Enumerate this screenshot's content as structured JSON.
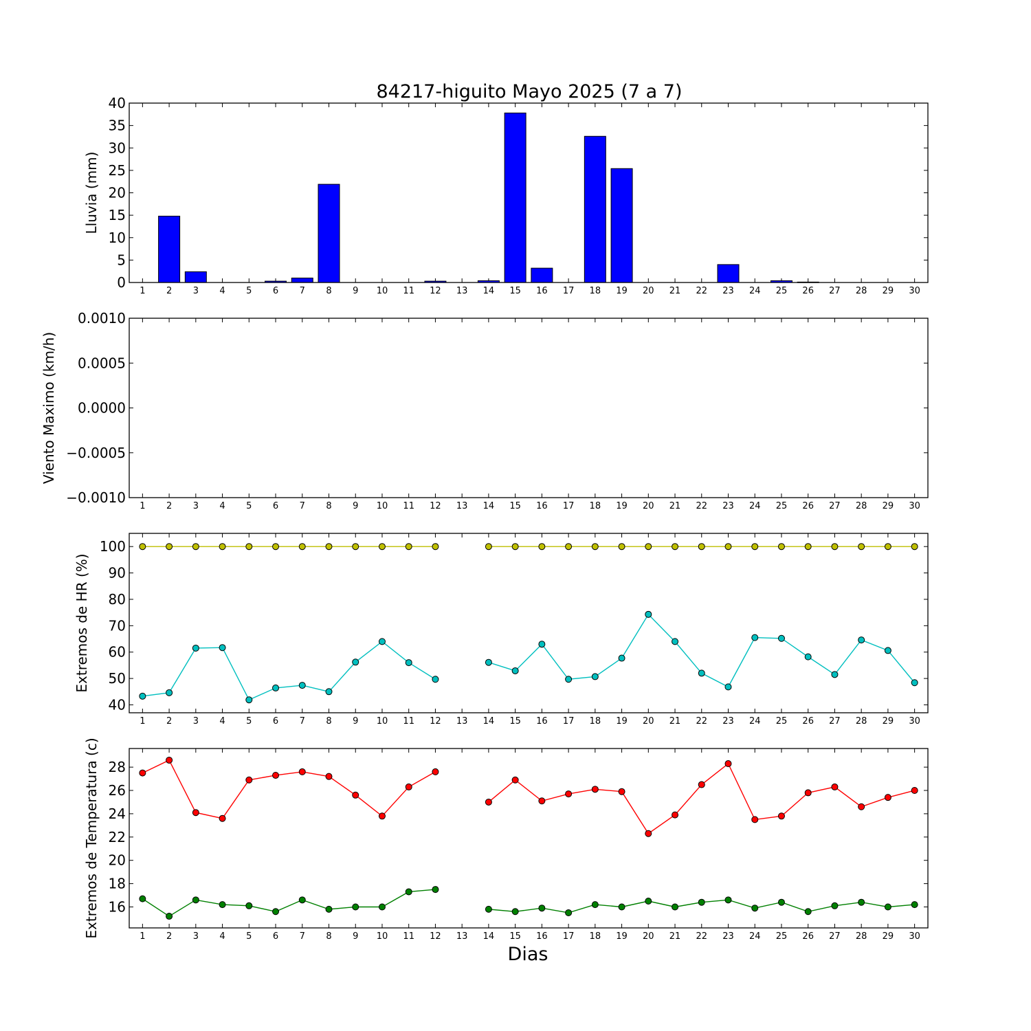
{
  "chart_data": {
    "title": "84217-higuito Mayo 2025  (7 a 7)",
    "xlabel": "Dias",
    "days": [
      1,
      2,
      3,
      4,
      5,
      6,
      7,
      8,
      9,
      10,
      11,
      12,
      13,
      14,
      15,
      16,
      17,
      18,
      19,
      20,
      21,
      22,
      23,
      24,
      25,
      26,
      27,
      28,
      29,
      30
    ],
    "panels": [
      {
        "type": "bar",
        "ylabel": "Lluvia (mm)",
        "ylim": [
          0,
          40
        ],
        "yticks": [
          "0",
          "5",
          "10",
          "15",
          "20",
          "25",
          "30",
          "35",
          "40"
        ],
        "series": [
          {
            "color": "#0000ff",
            "values": [
              0,
              14.8,
              2.4,
              0,
              0,
              0.3,
              1.0,
              21.9,
              0,
              0,
              0,
              0.3,
              0,
              0.4,
              37.8,
              3.2,
              0,
              32.6,
              25.4,
              0,
              0,
              0,
              4.0,
              0,
              0.4,
              0.1,
              0,
              0,
              0,
              0
            ]
          }
        ]
      },
      {
        "type": "line",
        "ylabel": "Viento Maximo (km/h)",
        "ylim": [
          -0.001,
          0.001
        ],
        "yticks": [
          "−0.0010",
          "−0.0005",
          "0.0000",
          "0.0005",
          "0.0010"
        ],
        "series": []
      },
      {
        "type": "line",
        "ylabel": "Extremos de HR (%)",
        "ylim": [
          37,
          105
        ],
        "yticks": [
          "40",
          "50",
          "60",
          "70",
          "80",
          "90",
          "100"
        ],
        "series": [
          {
            "color": "#bfbf00",
            "values": [
              100,
              100,
              100,
              100,
              100,
              100,
              100,
              100,
              100,
              100,
              100,
              100,
              null,
              100,
              100,
              100,
              100,
              100,
              100,
              100,
              100,
              100,
              100,
              100,
              100,
              100,
              100,
              100,
              100,
              100
            ]
          },
          {
            "color": "#00bfbf",
            "values": [
              43.3,
              44.6,
              61.5,
              61.7,
              41.9,
              46.4,
              47.4,
              45.0,
              56.2,
              64.0,
              56.0,
              49.7,
              null,
              56.1,
              52.9,
              63.0,
              49.7,
              50.7,
              57.7,
              74.3,
              64.0,
              52.0,
              46.8,
              65.5,
              65.2,
              58.2,
              51.5,
              64.6,
              60.6,
              48.4
            ]
          }
        ]
      },
      {
        "type": "line",
        "ylabel": "Extremos de Temperatura (c)",
        "ylim": [
          14.2,
          29.6
        ],
        "yticks": [
          "16",
          "18",
          "20",
          "22",
          "24",
          "26",
          "28"
        ],
        "series": [
          {
            "color": "#ff0000",
            "values": [
              27.5,
              28.6,
              24.1,
              23.6,
              26.9,
              27.3,
              27.6,
              27.2,
              25.6,
              23.8,
              26.3,
              27.6,
              null,
              25.0,
              26.9,
              25.1,
              25.7,
              26.1,
              25.9,
              22.3,
              23.9,
              26.5,
              28.3,
              23.5,
              23.8,
              25.8,
              26.3,
              24.6,
              25.4,
              26.0
            ]
          },
          {
            "color": "#008000",
            "values": [
              16.7,
              15.2,
              16.6,
              16.2,
              16.1,
              15.6,
              16.6,
              15.8,
              16.0,
              16.0,
              17.3,
              17.5,
              null,
              15.8,
              15.6,
              15.9,
              15.5,
              16.2,
              16.0,
              16.5,
              16.0,
              16.4,
              16.6,
              15.9,
              16.4,
              15.6,
              16.1,
              16.4,
              16.0,
              16.2
            ]
          }
        ]
      }
    ]
  }
}
